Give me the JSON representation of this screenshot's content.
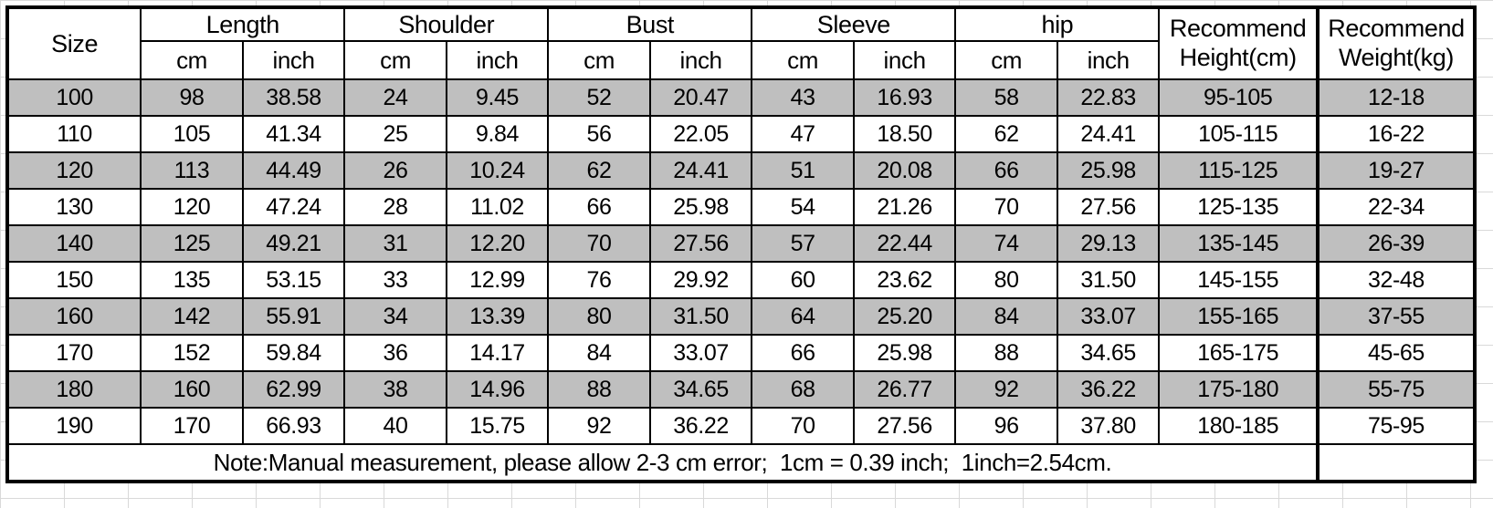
{
  "chart_data": {
    "type": "table",
    "header": {
      "size": "Size",
      "groups": [
        {
          "label": "Length",
          "sub": [
            "cm",
            "inch"
          ]
        },
        {
          "label": "Shoulder",
          "sub": [
            "cm",
            "inch"
          ]
        },
        {
          "label": "Bust",
          "sub": [
            "cm",
            "inch"
          ]
        },
        {
          "label": "Sleeve",
          "sub": [
            "cm",
            "inch"
          ]
        },
        {
          "label": "hip",
          "sub": [
            "cm",
            "inch"
          ]
        }
      ],
      "rec_height": "Recommend Height(cm)",
      "rec_weight": "Recommend Weight(kg)"
    },
    "units": {
      "cm": "cm",
      "inch": "inch"
    },
    "row_fields": [
      "size",
      "length_cm",
      "length_inch",
      "shoulder_cm",
      "shoulder_inch",
      "bust_cm",
      "bust_inch",
      "sleeve_cm",
      "sleeve_inch",
      "hip_cm",
      "hip_inch",
      "recommend_height_cm",
      "recommend_weight_kg"
    ],
    "rows": [
      [
        "100",
        "98",
        "38.58",
        "24",
        "9.45",
        "52",
        "20.47",
        "43",
        "16.93",
        "58",
        "22.83",
        "95-105",
        "12-18"
      ],
      [
        "110",
        "105",
        "41.34",
        "25",
        "9.84",
        "56",
        "22.05",
        "47",
        "18.50",
        "62",
        "24.41",
        "105-115",
        "16-22"
      ],
      [
        "120",
        "113",
        "44.49",
        "26",
        "10.24",
        "62",
        "24.41",
        "51",
        "20.08",
        "66",
        "25.98",
        "115-125",
        "19-27"
      ],
      [
        "130",
        "120",
        "47.24",
        "28",
        "11.02",
        "66",
        "25.98",
        "54",
        "21.26",
        "70",
        "27.56",
        "125-135",
        "22-34"
      ],
      [
        "140",
        "125",
        "49.21",
        "31",
        "12.20",
        "70",
        "27.56",
        "57",
        "22.44",
        "74",
        "29.13",
        "135-145",
        "26-39"
      ],
      [
        "150",
        "135",
        "53.15",
        "33",
        "12.99",
        "76",
        "29.92",
        "60",
        "23.62",
        "80",
        "31.50",
        "145-155",
        "32-48"
      ],
      [
        "160",
        "142",
        "55.91",
        "34",
        "13.39",
        "80",
        "31.50",
        "64",
        "25.20",
        "84",
        "33.07",
        "155-165",
        "37-55"
      ],
      [
        "170",
        "152",
        "59.84",
        "36",
        "14.17",
        "84",
        "33.07",
        "66",
        "25.98",
        "88",
        "34.65",
        "165-175",
        "45-65"
      ],
      [
        "180",
        "160",
        "62.99",
        "38",
        "14.96",
        "88",
        "34.65",
        "68",
        "26.77",
        "92",
        "36.22",
        "175-180",
        "55-75"
      ],
      [
        "190",
        "170",
        "66.93",
        "40",
        "15.75",
        "92",
        "36.22",
        "70",
        "27.56",
        "96",
        "37.80",
        "180-185",
        "75-95"
      ]
    ],
    "note": "Note:Manual measurement, please allow 2-3 cm error;  1cm = 0.39 inch;  1inch=2.54cm.",
    "layout_hints": {
      "shaded_rows": "alternating starting with size 100",
      "note_spans": "Size through Recommend Height columns"
    },
    "styles": {
      "shaded_row_color": "#bfbfbf",
      "plain_row_color": "#ffffff",
      "border_color": "#000000",
      "margin_gridline_color": "#d9d9d9"
    }
  }
}
